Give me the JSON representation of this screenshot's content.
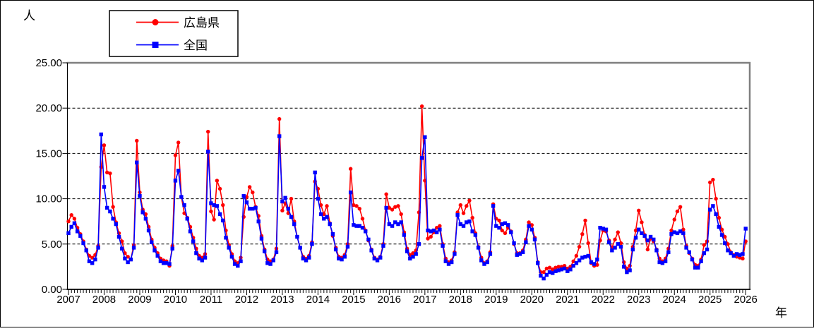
{
  "chart_data": {
    "type": "line",
    "title": "",
    "ylabel": "人",
    "xlabel": "年",
    "ylim": [
      0,
      25
    ],
    "grid": "horizontal-dashed",
    "legend_position": "top-left",
    "frequency": "monthly",
    "x_start": "2007-01",
    "x_end": "2026-01",
    "y_tick_labels": [
      "0.00",
      "5.00",
      "10.00",
      "15.00",
      "20.00",
      "25.00"
    ],
    "x_tick_labels": [
      "2007",
      "2008",
      "2009",
      "2010",
      "2011",
      "2012",
      "2013",
      "2014",
      "2015",
      "2016",
      "2017",
      "2018",
      "2019",
      "2020",
      "2021",
      "2022",
      "2023",
      "2024",
      "2025",
      "2026"
    ],
    "colors": {
      "hiroshima": "#ff0000",
      "national": "#0000ff",
      "gridline": "#000000",
      "plot_border_gray": "#808080",
      "axis_black": "#000000",
      "background": "#ffffff"
    },
    "series": [
      {
        "name": "広島県",
        "color": "#ff0000",
        "marker": "circle",
        "values": [
          7.5,
          8.2,
          7.8,
          6.8,
          6.1,
          5.3,
          4.4,
          3.7,
          3.5,
          3.8,
          4.8,
          13.5,
          15.9,
          12.9,
          12.8,
          9.1,
          7.4,
          6.2,
          5.3,
          4.0,
          3.6,
          3.3,
          4.9,
          16.4,
          10.7,
          8.8,
          8.3,
          6.9,
          5.5,
          4.6,
          4.0,
          3.4,
          3.2,
          3.1,
          2.6,
          4.8,
          14.8,
          16.2,
          10.2,
          8.4,
          7.9,
          6.9,
          5.7,
          4.5,
          3.7,
          3.5,
          3.9,
          17.4,
          8.6,
          7.7,
          12.0,
          11.1,
          9.3,
          6.5,
          4.9,
          3.9,
          3.1,
          2.9,
          3.5,
          8.0,
          10.2,
          11.3,
          10.7,
          9.1,
          8.1,
          5.9,
          4.4,
          3.3,
          3.1,
          3.3,
          4.5,
          18.8,
          8.7,
          9.5,
          8.4,
          10.0,
          7.5,
          5.8,
          4.6,
          3.6,
          3.4,
          3.7,
          5.2,
          11.9,
          11.1,
          9.3,
          8.3,
          9.2,
          7.3,
          5.9,
          4.6,
          3.6,
          3.5,
          3.8,
          5.0,
          13.3,
          9.3,
          9.2,
          8.9,
          7.8,
          6.5,
          5.4,
          4.4,
          3.5,
          3.3,
          3.6,
          5.0,
          10.5,
          9.0,
          8.8,
          9.1,
          9.2,
          8.3,
          6.3,
          4.5,
          3.8,
          4.0,
          4.3,
          8.5,
          20.2,
          12.0,
          5.6,
          5.8,
          6.3,
          6.8,
          7.0,
          5.0,
          3.4,
          3.0,
          3.2,
          4.1,
          8.5,
          9.3,
          8.4,
          9.2,
          9.8,
          7.9,
          6.2,
          4.7,
          3.5,
          2.9,
          3.1,
          4.1,
          9.4,
          7.8,
          7.6,
          6.5,
          6.2,
          6.8,
          6.4,
          5.0,
          4.0,
          4.0,
          4.3,
          5.5,
          7.4,
          7.1,
          5.7,
          3.0,
          1.9,
          1.9,
          2.3,
          2.4,
          2.2,
          2.4,
          2.5,
          2.5,
          2.6,
          2.3,
          2.5,
          3.1,
          3.7,
          4.7,
          6.1,
          7.6,
          5.1,
          2.9,
          2.6,
          2.7,
          5.4,
          6.5,
          6.4,
          5.4,
          4.6,
          5.5,
          6.3,
          5.1,
          3.0,
          2.3,
          2.6,
          4.7,
          6.5,
          8.7,
          7.4,
          6.0,
          4.4,
          5.6,
          5.3,
          4.4,
          3.4,
          3.1,
          3.4,
          4.5,
          6.5,
          7.7,
          8.6,
          9.1,
          6.6,
          4.8,
          4.0,
          3.4,
          2.7,
          2.6,
          3.3,
          4.9,
          5.3,
          11.8,
          12.1,
          10.0,
          7.9,
          6.6,
          5.8,
          5.0,
          4.1,
          3.8,
          3.6,
          3.5,
          3.4,
          5.3
        ]
      },
      {
        "name": "全国",
        "color": "#0000ff",
        "marker": "square",
        "values": [
          6.2,
          6.9,
          7.3,
          6.4,
          5.9,
          5.1,
          4.3,
          3.1,
          2.9,
          3.3,
          4.6,
          17.1,
          11.3,
          9.0,
          8.6,
          7.8,
          7.2,
          5.8,
          4.5,
          3.4,
          3.0,
          3.3,
          4.6,
          14.0,
          10.3,
          8.5,
          7.8,
          6.5,
          5.2,
          4.3,
          3.7,
          3.1,
          2.9,
          2.9,
          2.8,
          4.5,
          12.0,
          13.1,
          10.2,
          9.3,
          7.8,
          6.4,
          5.3,
          4.0,
          3.4,
          3.2,
          3.5,
          15.2,
          9.5,
          9.3,
          9.2,
          8.3,
          7.6,
          5.7,
          4.6,
          3.6,
          2.8,
          2.6,
          3.1,
          10.3,
          9.6,
          8.9,
          8.9,
          9.0,
          7.5,
          5.6,
          4.2,
          2.9,
          2.8,
          3.2,
          4.1,
          16.9,
          9.7,
          10.1,
          8.9,
          8.0,
          7.2,
          5.8,
          4.6,
          3.4,
          3.2,
          3.5,
          5.0,
          12.9,
          10.0,
          8.3,
          7.8,
          8.0,
          7.2,
          6.1,
          4.4,
          3.4,
          3.3,
          3.6,
          4.7,
          10.7,
          7.1,
          7.0,
          7.0,
          6.8,
          6.4,
          5.5,
          4.3,
          3.4,
          3.2,
          3.5,
          4.8,
          9.0,
          7.2,
          7.0,
          7.4,
          7.2,
          7.4,
          6.0,
          4.2,
          3.4,
          3.6,
          3.9,
          5.0,
          14.5,
          16.8,
          6.5,
          6.4,
          6.5,
          6.3,
          6.6,
          4.8,
          3.1,
          2.8,
          3.0,
          3.9,
          8.2,
          7.2,
          7.0,
          7.4,
          7.5,
          6.4,
          6.0,
          4.6,
          3.2,
          2.8,
          3.0,
          3.9,
          9.2,
          7.0,
          6.8,
          7.2,
          7.3,
          7.1,
          6.3,
          5.1,
          3.8,
          3.9,
          4.1,
          5.2,
          7.0,
          6.6,
          5.5,
          2.9,
          1.5,
          1.2,
          1.6,
          1.9,
          1.8,
          2.0,
          2.1,
          2.2,
          2.3,
          2.0,
          2.2,
          2.6,
          2.9,
          3.2,
          3.5,
          3.6,
          3.7,
          3.0,
          2.8,
          3.3,
          6.8,
          6.7,
          6.6,
          5.2,
          4.3,
          4.6,
          5.0,
          4.7,
          2.5,
          1.9,
          2.1,
          4.4,
          5.7,
          6.6,
          6.2,
          5.9,
          5.4,
          5.8,
          5.5,
          4.3,
          3.0,
          2.9,
          3.1,
          4.1,
          6.1,
          6.3,
          6.2,
          6.4,
          6.2,
          4.6,
          4.1,
          3.3,
          2.4,
          2.4,
          3.1,
          4.0,
          4.4,
          8.8,
          9.2,
          8.3,
          6.9,
          6.0,
          5.1,
          4.3,
          4.0,
          3.7,
          3.9,
          3.8,
          3.9,
          6.7
        ]
      }
    ]
  },
  "legend": {
    "items": [
      {
        "label": "広島県",
        "color": "#ff0000",
        "marker": "circle"
      },
      {
        "label": "全国",
        "color": "#0000ff",
        "marker": "square"
      }
    ]
  }
}
